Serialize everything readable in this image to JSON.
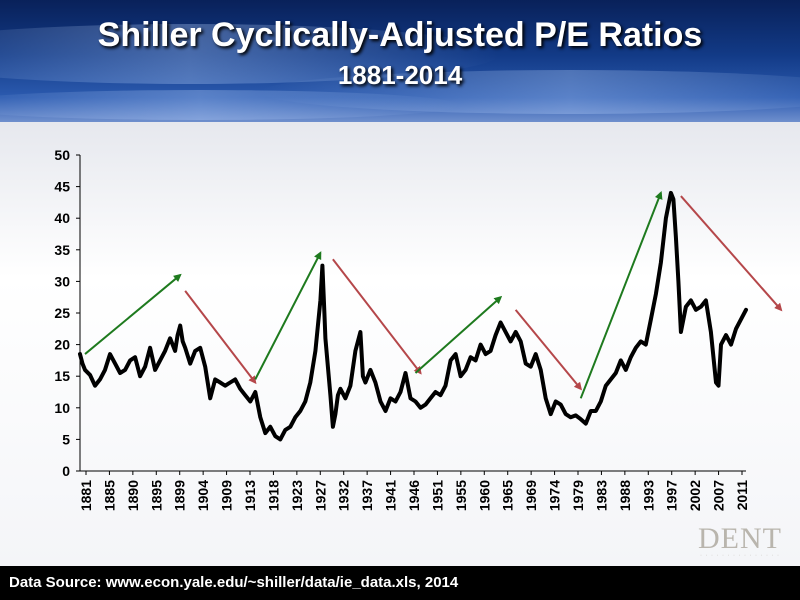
{
  "slide": {
    "title": "Shiller Cyclically-Adjusted P/E Ratios",
    "subtitle": "1881-2014",
    "footer": "Data Source: www.econ.yale.edu/~shiller/data/ie_data.xls,  2014",
    "logo_text": "DENT"
  },
  "colors": {
    "series": "#000000",
    "uptrend_arrow": "#1e7a1e",
    "downtrend_arrow": "#b5474a",
    "header": "#123a86",
    "footer": "#000000"
  },
  "chart_data": {
    "type": "line",
    "title": "Shiller Cyclically-Adjusted P/E Ratios",
    "subtitle": "1881-2014",
    "xlabel": "",
    "ylabel": "",
    "ylim": [
      0,
      50
    ],
    "xlim": [
      1881,
      2014
    ],
    "yticks": [
      0,
      5,
      10,
      15,
      20,
      25,
      30,
      35,
      40,
      45,
      50
    ],
    "xticks": [
      1881,
      1885,
      1890,
      1895,
      1899,
      1904,
      1909,
      1913,
      1918,
      1923,
      1927,
      1932,
      1937,
      1941,
      1946,
      1951,
      1955,
      1960,
      1965,
      1969,
      1974,
      1979,
      1983,
      1988,
      1993,
      1997,
      2002,
      2007,
      2011
    ],
    "grid": false,
    "legend": "none",
    "series": [
      {
        "x": [
          1881,
          1881.5,
          1882,
          1883,
          1884,
          1885,
          1886,
          1887,
          1888,
          1889,
          1890,
          1891,
          1892,
          1893,
          1894,
          1895,
          1896,
          1897,
          1898,
          1899,
          1900,
          1900.5,
          1901,
          1901.5,
          1902,
          1903,
          1904,
          1905,
          1906,
          1907,
          1908,
          1909,
          1910,
          1911,
          1912,
          1913,
          1914,
          1915,
          1916,
          1917,
          1918,
          1919,
          1920,
          1921,
          1922,
          1923,
          1924,
          1925,
          1926,
          1927,
          1928,
          1929,
          1929.4,
          1929.8,
          1930,
          1931,
          1931.5,
          1932,
          1932.5,
          1933,
          1934,
          1935,
          1936,
          1937,
          1937.5,
          1938,
          1939,
          1940,
          1941,
          1942,
          1943,
          1944,
          1945,
          1946,
          1947,
          1948,
          1949,
          1950,
          1951,
          1952,
          1953,
          1954,
          1955,
          1956,
          1957,
          1958,
          1959,
          1960,
          1961,
          1962,
          1963,
          1964,
          1965,
          1966,
          1967,
          1968,
          1969,
          1970,
          1971,
          1972,
          1973,
          1974,
          1975,
          1976,
          1977,
          1978,
          1979,
          1980,
          1981,
          1982,
          1983,
          1984,
          1985,
          1986,
          1987,
          1988,
          1989,
          1990,
          1991,
          1992,
          1993,
          1994,
          1995,
          1996,
          1997,
          1998,
          1999,
          1999.5,
          2000,
          2000.5,
          2001,
          2002,
          2003,
          2004,
          2005,
          2006,
          2007,
          2008,
          2008.5,
          2009,
          2010,
          2011,
          2012,
          2013,
          2014
        ],
        "y": [
          18.5,
          17.0,
          16.0,
          15.2,
          13.5,
          14.5,
          16.0,
          18.5,
          17.0,
          15.5,
          16.0,
          17.5,
          18.0,
          15.0,
          16.5,
          19.5,
          16.0,
          17.5,
          19.0,
          21.0,
          19.0,
          21.5,
          23.0,
          20.5,
          19.5,
          17.0,
          19.0,
          19.5,
          16.5,
          11.5,
          14.5,
          14.0,
          13.5,
          14.0,
          14.5,
          13.0,
          12.0,
          11.0,
          12.5,
          8.5,
          6.0,
          7.0,
          5.5,
          5.0,
          6.5,
          7.0,
          8.5,
          9.5,
          11.0,
          14.0,
          19.0,
          27.0,
          32.5,
          25.0,
          21.0,
          12.0,
          7.0,
          9.0,
          12.0,
          13.0,
          11.5,
          13.5,
          19.0,
          22.0,
          15.0,
          14.0,
          16.0,
          14.0,
          11.0,
          9.5,
          11.5,
          11.0,
          12.5,
          15.5,
          11.5,
          11.0,
          10.0,
          10.5,
          11.5,
          12.5,
          12.0,
          13.5,
          17.5,
          18.5,
          15.0,
          16.0,
          18.0,
          17.5,
          20.0,
          18.5,
          19.0,
          21.5,
          23.5,
          22.0,
          20.5,
          22.0,
          20.5,
          17.0,
          16.5,
          18.5,
          16.0,
          11.5,
          9.0,
          11.0,
          10.5,
          9.0,
          8.5,
          8.8,
          8.2,
          7.5,
          9.5,
          9.5,
          11.0,
          13.5,
          14.5,
          15.5,
          17.5,
          16.0,
          18.0,
          19.5,
          20.5,
          20.0,
          24.0,
          28.0,
          33.0,
          40.0,
          44.0,
          43.0,
          37.0,
          30.0,
          22.0,
          26.0,
          27.0,
          25.5,
          26.0,
          27.0,
          22.0,
          14.0,
          13.5,
          20.0,
          21.5,
          20.0,
          22.5,
          24.0,
          25.5
        ]
      }
    ],
    "annotations": [
      {
        "type": "uptrend_arrow",
        "from": [
          1882,
          18.5
        ],
        "to": [
          1901,
          31
        ]
      },
      {
        "type": "downtrend_arrow",
        "from": [
          1902,
          28.5
        ],
        "to": [
          1916,
          14
        ]
      },
      {
        "type": "uptrend_arrow",
        "from": [
          1916,
          14.5
        ],
        "to": [
          1929,
          34.5
        ]
      },
      {
        "type": "downtrend_arrow",
        "from": [
          1931.5,
          33.5
        ],
        "to": [
          1949,
          15.5
        ]
      },
      {
        "type": "uptrend_arrow",
        "from": [
          1948,
          15.5
        ],
        "to": [
          1965,
          27.5
        ]
      },
      {
        "type": "downtrend_arrow",
        "from": [
          1968,
          25.5
        ],
        "to": [
          1981,
          13
        ]
      },
      {
        "type": "uptrend_arrow",
        "from": [
          1981,
          11.5
        ],
        "to": [
          1997,
          44
        ]
      },
      {
        "type": "downtrend_arrow",
        "from": [
          2001,
          43.5
        ],
        "to": [
          2021,
          25.5
        ]
      }
    ]
  }
}
